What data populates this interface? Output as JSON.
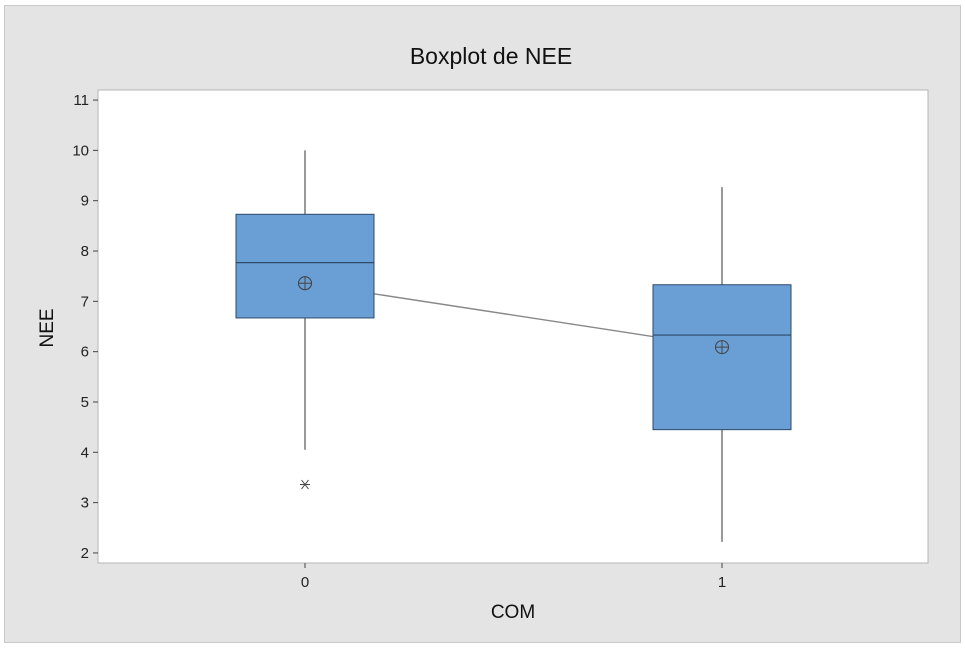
{
  "chart_data": {
    "type": "boxplot",
    "title": "Boxplot de NEE",
    "xlabel": "COM",
    "ylabel": "NEE",
    "categories": [
      "0",
      "1"
    ],
    "ylim": [
      1.8,
      11.2
    ],
    "yticks": [
      2,
      3,
      4,
      5,
      6,
      7,
      8,
      9,
      10,
      11
    ],
    "boxes": [
      {
        "category": "0",
        "whisker_low": 4.05,
        "q1": 6.67,
        "median": 7.77,
        "q3": 8.73,
        "whisker_high": 10.0,
        "mean": 7.36,
        "outliers": [
          3.36
        ]
      },
      {
        "category": "1",
        "whisker_low": 2.22,
        "q1": 4.45,
        "median": 6.33,
        "q3": 7.33,
        "whisker_high": 9.27,
        "mean": 6.09,
        "outliers": []
      }
    ],
    "colors": {
      "box_fill": "#6a9fd6",
      "box_stroke": "#2e4a6b",
      "mean_line": "#888888",
      "background": "#e4e4e4",
      "plot_area": "#ffffff"
    }
  }
}
